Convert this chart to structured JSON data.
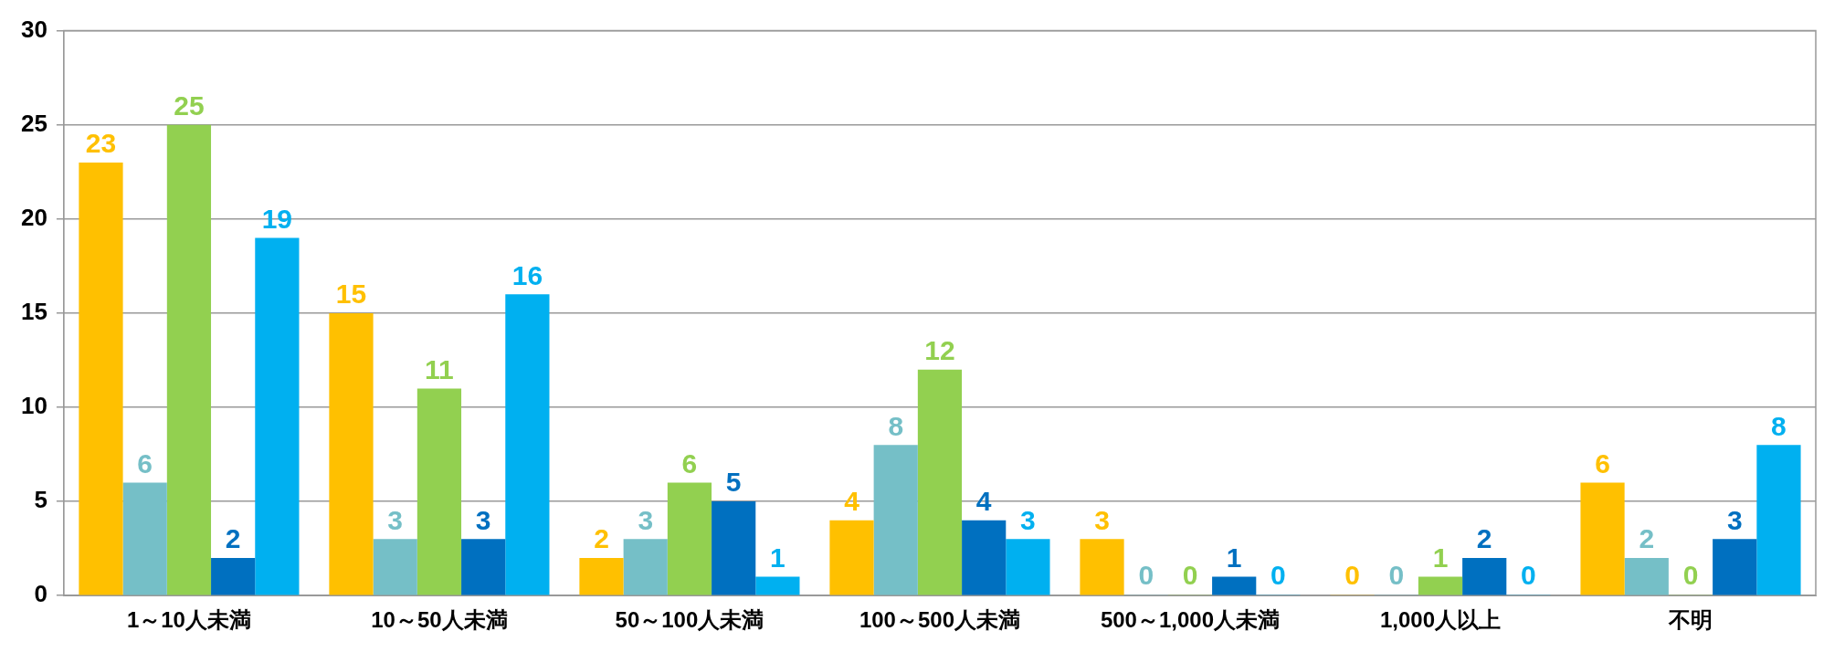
{
  "chart_data": {
    "type": "bar",
    "categories": [
      "1～10人未満",
      "10～50人未満",
      "50～100人未満",
      "100～500人未満",
      "500～1,000人未満",
      "1,000人以上",
      "不明"
    ],
    "series": [
      {
        "color": "#ffc000",
        "values": [
          23,
          15,
          2,
          4,
          3,
          0,
          6
        ]
      },
      {
        "color": "#75bfc7",
        "values": [
          6,
          3,
          3,
          8,
          0,
          0,
          2
        ]
      },
      {
        "color": "#92d050",
        "values": [
          25,
          11,
          6,
          12,
          0,
          1,
          0
        ]
      },
      {
        "color": "#0070c0",
        "values": [
          2,
          3,
          5,
          4,
          1,
          2,
          3
        ]
      },
      {
        "color": "#00b0f0",
        "values": [
          19,
          16,
          1,
          3,
          0,
          0,
          8
        ]
      }
    ],
    "ylim": [
      0,
      30
    ],
    "yticks": [
      0,
      5,
      10,
      15,
      20,
      25,
      30
    ],
    "grid": "y",
    "data_labels": true,
    "legend": false
  }
}
